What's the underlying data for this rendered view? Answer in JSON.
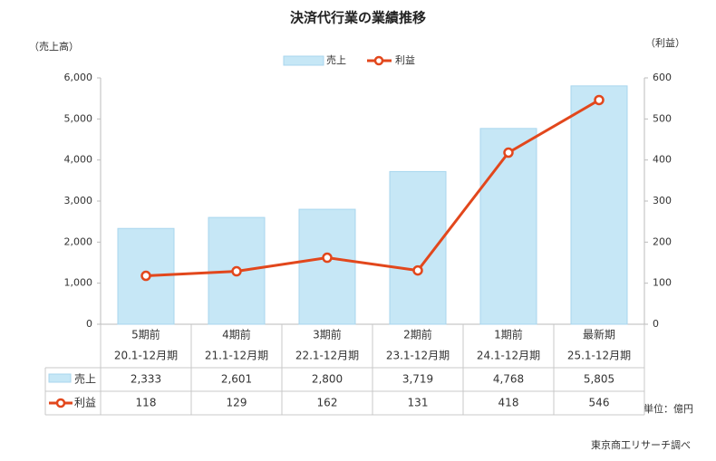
{
  "chart_data": {
    "type": "bar-line",
    "title": "決済代行業の業績推移",
    "y_label": "（売上高）",
    "y2_label": "（利益）",
    "categories": [
      "5期前",
      "4期前",
      "3期前",
      "2期前",
      "1期前",
      "最新期"
    ],
    "periods": [
      "20.1-12月期",
      "21.1-12月期",
      "22.1-12月期",
      "23.1-12月期",
      "24.1-12月期",
      "25.1-12月期"
    ],
    "series": [
      {
        "name": "売上",
        "color": "#c6e7f6",
        "values": [
          2333,
          2601,
          2800,
          3719,
          4768,
          5805
        ],
        "value_labels": [
          "2,333",
          "2,601",
          "2,800",
          "3,719",
          "4,768",
          "5,805"
        ]
      },
      {
        "name": "利益",
        "color": "#e2471c",
        "axis": "y2",
        "values": [
          118,
          129,
          162,
          131,
          418,
          546
        ]
      }
    ],
    "ylim": [
      0,
      6000
    ],
    "yticks": [
      0,
      {
        "value": 1000,
        "label": "1,000"
      },
      {
        "value": 2000,
        "label": "2,000"
      },
      {
        "value": 3000,
        "label": "3,000"
      },
      {
        "value": 4000,
        "label": "4,000"
      },
      {
        "value": 5000,
        "label": "5,000"
      },
      {
        "value": 6000,
        "label": "6,000"
      }
    ],
    "y2lim": [
      0,
      600
    ],
    "y2ticks": [
      0,
      100,
      200,
      300,
      400,
      500,
      600
    ],
    "unit_note": "単位：億円",
    "source": "東京商工リサーチ調べ"
  }
}
